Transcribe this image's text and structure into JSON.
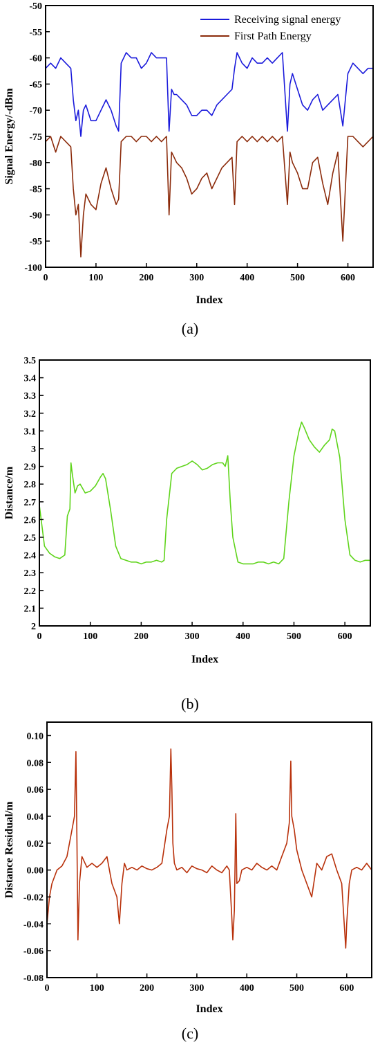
{
  "chart_data": [
    {
      "panel": "a",
      "type": "line",
      "xlabel": "Index",
      "ylabel": "Signal Energy/-dBm",
      "xlim": [
        0,
        650
      ],
      "ylim": [
        -100,
        -50
      ],
      "xticks": [
        0,
        100,
        200,
        300,
        400,
        500,
        600
      ],
      "yticks": [
        -100,
        -95,
        -90,
        -85,
        -80,
        -75,
        -70,
        -65,
        -60,
        -55,
        -50
      ],
      "legend": "top-right",
      "series": [
        {
          "name": "Receiving signal energy",
          "color": "#1a1adb",
          "x": [
            0,
            10,
            20,
            30,
            40,
            50,
            55,
            60,
            65,
            70,
            75,
            80,
            90,
            100,
            110,
            120,
            130,
            140,
            145,
            150,
            160,
            170,
            180,
            190,
            200,
            210,
            220,
            230,
            240,
            245,
            250,
            255,
            260,
            270,
            280,
            290,
            300,
            310,
            320,
            330,
            340,
            350,
            360,
            370,
            375,
            380,
            390,
            400,
            410,
            420,
            430,
            440,
            450,
            460,
            470,
            480,
            485,
            490,
            500,
            510,
            520,
            530,
            540,
            550,
            560,
            570,
            580,
            590,
            600,
            610,
            620,
            630,
            640,
            650
          ],
          "y": [
            -62,
            -61,
            -62,
            -60,
            -61,
            -62,
            -68,
            -72,
            -70,
            -75,
            -70,
            -69,
            -72,
            -72,
            -70,
            -68,
            -70,
            -73,
            -74,
            -61,
            -59,
            -60,
            -60,
            -62,
            -61,
            -59,
            -60,
            -60,
            -60,
            -74,
            -66,
            -67,
            -67,
            -68,
            -69,
            -71,
            -71,
            -70,
            -70,
            -71,
            -69,
            -68,
            -67,
            -66,
            -62,
            -59,
            -61,
            -62,
            -60,
            -61,
            -61,
            -60,
            -61,
            -60,
            -59,
            -74,
            -65,
            -63,
            -66,
            -69,
            -70,
            -68,
            -67,
            -70,
            -69,
            -68,
            -67,
            -73,
            -63,
            -61,
            -62,
            -63,
            -62,
            -62
          ]
        },
        {
          "name": "First Path Energy",
          "color": "#8b2a0a",
          "x": [
            0,
            10,
            20,
            30,
            40,
            50,
            55,
            60,
            65,
            70,
            75,
            80,
            90,
            100,
            110,
            120,
            130,
            140,
            145,
            150,
            160,
            170,
            180,
            190,
            200,
            210,
            220,
            230,
            240,
            245,
            250,
            255,
            260,
            270,
            280,
            290,
            300,
            310,
            320,
            330,
            340,
            350,
            360,
            370,
            375,
            380,
            390,
            400,
            410,
            420,
            430,
            440,
            450,
            460,
            470,
            480,
            485,
            490,
            500,
            510,
            520,
            530,
            540,
            550,
            560,
            570,
            580,
            590,
            600,
            610,
            620,
            630,
            640,
            650
          ],
          "y": [
            -76,
            -75,
            -78,
            -75,
            -76,
            -77,
            -85,
            -90,
            -88,
            -98,
            -90,
            -86,
            -88,
            -89,
            -84,
            -81,
            -85,
            -88,
            -87,
            -76,
            -75,
            -75,
            -76,
            -75,
            -75,
            -76,
            -75,
            -76,
            -75,
            -90,
            -78,
            -79,
            -80,
            -81,
            -83,
            -86,
            -85,
            -83,
            -82,
            -85,
            -83,
            -81,
            -80,
            -79,
            -88,
            -76,
            -75,
            -76,
            -75,
            -76,
            -75,
            -76,
            -75,
            -76,
            -75,
            -88,
            -78,
            -80,
            -82,
            -85,
            -85,
            -80,
            -79,
            -84,
            -88,
            -82,
            -78,
            -95,
            -75,
            -75,
            -76,
            -77,
            -76,
            -75
          ]
        }
      ]
    },
    {
      "panel": "b",
      "type": "line",
      "xlabel": "Index",
      "ylabel": "Distance/m",
      "xlim": [
        0,
        650
      ],
      "ylim": [
        2.0,
        3.5
      ],
      "xticks": [
        0,
        100,
        200,
        300,
        400,
        500,
        600
      ],
      "yticks": [
        2.0,
        2.1,
        2.2,
        2.3,
        2.4,
        2.5,
        2.6,
        2.7,
        2.8,
        2.9,
        3.0,
        3.1,
        3.2,
        3.3,
        3.4,
        3.5
      ],
      "series": [
        {
          "color": "#5fd41b",
          "x": [
            0,
            10,
            20,
            30,
            40,
            50,
            55,
            60,
            62,
            65,
            70,
            75,
            80,
            90,
            100,
            110,
            120,
            125,
            130,
            140,
            150,
            160,
            170,
            180,
            190,
            200,
            210,
            220,
            230,
            240,
            245,
            250,
            260,
            270,
            280,
            290,
            300,
            310,
            320,
            330,
            340,
            350,
            360,
            365,
            370,
            375,
            380,
            390,
            400,
            410,
            420,
            430,
            440,
            450,
            460,
            470,
            480,
            490,
            500,
            510,
            515,
            520,
            530,
            540,
            550,
            560,
            570,
            575,
            580,
            590,
            600,
            610,
            620,
            630,
            640,
            650
          ],
          "y": [
            2.68,
            2.45,
            2.41,
            2.39,
            2.38,
            2.4,
            2.62,
            2.66,
            2.92,
            2.85,
            2.75,
            2.79,
            2.8,
            2.75,
            2.76,
            2.79,
            2.84,
            2.86,
            2.83,
            2.65,
            2.45,
            2.38,
            2.37,
            2.36,
            2.36,
            2.35,
            2.36,
            2.36,
            2.37,
            2.36,
            2.37,
            2.6,
            2.86,
            2.89,
            2.9,
            2.91,
            2.93,
            2.91,
            2.88,
            2.89,
            2.91,
            2.92,
            2.92,
            2.9,
            2.96,
            2.7,
            2.5,
            2.36,
            2.35,
            2.35,
            2.35,
            2.36,
            2.36,
            2.35,
            2.36,
            2.35,
            2.38,
            2.7,
            2.96,
            3.1,
            3.15,
            3.12,
            3.05,
            3.01,
            2.98,
            3.02,
            3.05,
            3.11,
            3.1,
            2.95,
            2.6,
            2.4,
            2.37,
            2.36,
            2.37,
            2.37
          ]
        }
      ]
    },
    {
      "panel": "c",
      "type": "line",
      "xlabel": "Index",
      "ylabel": "Distance Residual/m",
      "xlim": [
        0,
        650
      ],
      "ylim": [
        -0.08,
        0.11
      ],
      "xticks": [
        0,
        100,
        200,
        300,
        400,
        500,
        600
      ],
      "yticks": [
        -0.08,
        -0.06,
        -0.04,
        -0.02,
        0.0,
        0.02,
        0.04,
        0.06,
        0.08,
        0.1
      ],
      "ytick_labels": [
        "-0.08",
        "-0.06",
        "-0.04",
        "-0.02",
        "0.00",
        "0.02",
        "0.04",
        "0.06",
        "0.08",
        "0.10"
      ],
      "series": [
        {
          "color": "#b8300a",
          "x": [
            0,
            5,
            10,
            20,
            30,
            40,
            50,
            55,
            58,
            60,
            62,
            65,
            70,
            80,
            90,
            100,
            110,
            120,
            130,
            140,
            145,
            150,
            155,
            160,
            170,
            180,
            190,
            200,
            210,
            220,
            230,
            240,
            245,
            248,
            250,
            252,
            255,
            260,
            270,
            280,
            290,
            300,
            310,
            320,
            330,
            340,
            350,
            360,
            365,
            370,
            372,
            375,
            378,
            380,
            385,
            390,
            400,
            410,
            420,
            430,
            440,
            450,
            460,
            470,
            480,
            485,
            488,
            490,
            495,
            500,
            510,
            520,
            530,
            540,
            550,
            560,
            570,
            580,
            590,
            595,
            598,
            600,
            605,
            610,
            620,
            630,
            640,
            650
          ],
          "y": [
            -0.04,
            -0.02,
            -0.01,
            0.0,
            0.003,
            0.01,
            0.03,
            0.04,
            0.088,
            0.02,
            -0.052,
            -0.01,
            0.01,
            0.002,
            0.005,
            0.002,
            0.005,
            0.01,
            -0.01,
            -0.02,
            -0.04,
            -0.01,
            0.005,
            0.0,
            0.002,
            0.0,
            0.003,
            0.001,
            0.0,
            0.002,
            0.005,
            0.03,
            0.04,
            0.09,
            0.06,
            0.02,
            0.005,
            0.0,
            0.002,
            -0.002,
            0.003,
            0.001,
            0.0,
            -0.002,
            0.003,
            0.0,
            -0.002,
            0.003,
            0.0,
            -0.035,
            -0.052,
            -0.03,
            0.042,
            -0.01,
            -0.008,
            0.0,
            0.002,
            0.0,
            0.005,
            0.002,
            0.0,
            0.003,
            0.0,
            0.01,
            0.02,
            0.035,
            0.081,
            0.04,
            0.03,
            0.015,
            0.0,
            -0.01,
            -0.02,
            0.005,
            0.0,
            0.01,
            0.012,
            0.0,
            -0.01,
            -0.04,
            -0.058,
            -0.04,
            -0.01,
            0.0,
            0.002,
            0.0,
            0.005,
            0.0
          ]
        }
      ]
    }
  ],
  "panel_labels": [
    "(a)",
    "(b)",
    "(c)"
  ]
}
